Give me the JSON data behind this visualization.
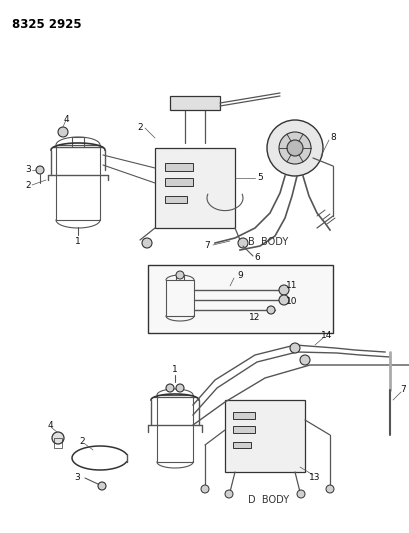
{
  "title": "8325 2925",
  "bg": "#ffffff",
  "line_color": "#555555",
  "dark": "#333333",
  "b_body": "B  BODY",
  "d_body": "D  BODY"
}
